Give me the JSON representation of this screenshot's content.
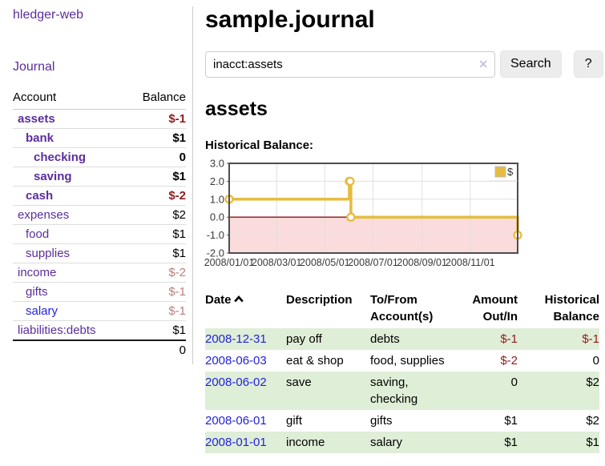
{
  "app": {
    "title": "hledger-web"
  },
  "sidebar": {
    "journal_link": "Journal",
    "columns": {
      "account": "Account",
      "balance": "Balance"
    },
    "accounts": [
      {
        "name": "assets",
        "indent": 1,
        "bold": true,
        "balance": "$-1",
        "negative": "strong",
        "link_style": "purple"
      },
      {
        "name": "bank",
        "indent": 2,
        "bold": true,
        "balance": "$1",
        "negative": "none",
        "link_style": "purple"
      },
      {
        "name": "checking",
        "indent": 3,
        "bold": true,
        "balance": "0",
        "negative": "none",
        "link_style": "purple"
      },
      {
        "name": "saving",
        "indent": 3,
        "bold": true,
        "balance": "$1",
        "negative": "none",
        "link_style": "purple"
      },
      {
        "name": "cash",
        "indent": 2,
        "bold": true,
        "balance": "$-2",
        "negative": "strong",
        "link_style": "purple"
      },
      {
        "name": "expenses",
        "indent": 1,
        "bold": false,
        "balance": "$2",
        "negative": "none",
        "link_style": "purple"
      },
      {
        "name": "food",
        "indent": 2,
        "bold": false,
        "balance": "$1",
        "negative": "none",
        "link_style": "purple"
      },
      {
        "name": "supplies",
        "indent": 2,
        "bold": false,
        "balance": "$1",
        "negative": "none",
        "link_style": "purple"
      },
      {
        "name": "income",
        "indent": 1,
        "bold": false,
        "balance": "$-2",
        "negative": "soft",
        "link_style": "purple"
      },
      {
        "name": "gifts",
        "indent": 2,
        "bold": false,
        "balance": "$-1",
        "negative": "soft",
        "link_style": "purple"
      },
      {
        "name": "salary",
        "indent": 2,
        "bold": false,
        "balance": "$-1",
        "negative": "soft",
        "link_style": "blue"
      },
      {
        "name": "liabilities:debts",
        "indent": 1,
        "bold": false,
        "balance": "$1",
        "negative": "none",
        "link_style": "purple"
      }
    ],
    "total": "0"
  },
  "header": {
    "title": "sample.journal"
  },
  "search": {
    "value": "inacct:assets",
    "clear_icon": "✕",
    "button": "Search",
    "help_button": "?"
  },
  "account_page": {
    "heading": "assets",
    "chart_label": "Historical Balance:"
  },
  "chart_data": {
    "type": "line",
    "step": true,
    "title": "Historical Balance:",
    "series": [
      {
        "name": "$",
        "color": "#e6bc3f",
        "points": [
          {
            "date": "2008-01-01",
            "value": 1
          },
          {
            "date": "2008-06-01",
            "value": 2
          },
          {
            "date": "2008-06-02",
            "value": 2
          },
          {
            "date": "2008-06-03",
            "value": 0
          },
          {
            "date": "2008-12-31",
            "value": -1
          }
        ]
      }
    ],
    "ylim": [
      -2,
      3
    ],
    "yticks": [
      3.0,
      2.0,
      1.0,
      0.0,
      -1.0,
      -2.0
    ],
    "ytick_labels": [
      "3.0",
      "2.0",
      "1.0",
      "0.0",
      "-1.0",
      "-2.0"
    ],
    "xticks": [
      "2008/01/01",
      "2008/03/01",
      "2008/05/01",
      "2008/07/01",
      "2008/09/01",
      "2008/11/01"
    ],
    "x_range": [
      "2008-01-01",
      "2008-12-31"
    ],
    "legend": {
      "position": "top-right",
      "entries": [
        {
          "label": "$",
          "color": "#e6bc3f"
        }
      ]
    },
    "grid": true,
    "negative_region_fill": "#fbdcdc",
    "zero_line_color": "#8b1111"
  },
  "transactions": {
    "columns": [
      "Date",
      "Description",
      "To/From Account(s)",
      "Amount Out/In",
      "Historical Balance"
    ],
    "sort": {
      "column": "Date",
      "direction": "ascending"
    },
    "rows": [
      {
        "date": "2008-12-31",
        "description": "pay off",
        "accounts": "debts",
        "amount": "$-1",
        "amount_negative": true,
        "balance": "$-1",
        "balance_negative": true
      },
      {
        "date": "2008-06-03",
        "description": "eat & shop",
        "accounts": "food, supplies",
        "amount": "$-2",
        "amount_negative": true,
        "balance": "0",
        "balance_negative": false
      },
      {
        "date": "2008-06-02",
        "description": "save",
        "accounts": "saving, checking",
        "amount": "0",
        "amount_negative": false,
        "balance": "$2",
        "balance_negative": false
      },
      {
        "date": "2008-06-01",
        "description": "gift",
        "accounts": "gifts",
        "amount": "$1",
        "amount_negative": false,
        "balance": "$2",
        "balance_negative": false
      },
      {
        "date": "2008-01-01",
        "description": "income",
        "accounts": "salary",
        "amount": "$1",
        "amount_negative": false,
        "balance": "$1",
        "balance_negative": false
      }
    ]
  },
  "colors": {
    "link_purple": "#5b2d9c",
    "link_blue": "#2222dd",
    "negative_strong": "#8f1d1d",
    "negative_soft": "#b97f7f",
    "row_stripe_green": "#dfeed7",
    "chart_line": "#e6bc3f",
    "chart_negative_fill": "#fbdcdc",
    "chart_zero_line": "#8b1111",
    "button_background": "#ececec"
  }
}
